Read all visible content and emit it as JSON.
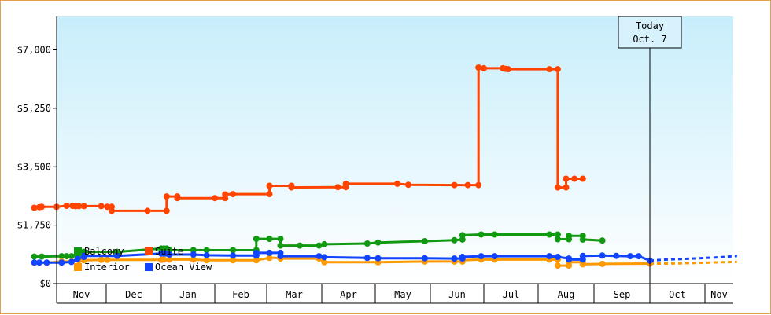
{
  "chart_data": {
    "type": "line",
    "title": "",
    "xlabel": "",
    "ylabel": "",
    "ylim": [
      0,
      8000
    ],
    "grid": false,
    "y_ticks": [
      0,
      1750,
      3500,
      5250,
      7000
    ],
    "y_tick_labels": [
      "$0",
      "$1,750",
      "$3,500",
      "$5,250",
      "$7,000"
    ],
    "months": [
      "Nov",
      "Dec",
      "Jan",
      "Feb",
      "Mar",
      "Apr",
      "May",
      "Jun",
      "Jul",
      "Aug",
      "Sep",
      "Oct",
      "Nov"
    ],
    "legend": {
      "placement": "bottom-left"
    },
    "today_marker": {
      "line1": "Today",
      "line2": "Oct. 7",
      "x": 11.0
    },
    "series": [
      {
        "name": "Balcony",
        "color": "#119911",
        "points": [
          [
            -0.45,
            810
          ],
          [
            -0.3,
            810
          ],
          [
            0.1,
            820
          ],
          [
            0.2,
            820
          ],
          [
            0.3,
            820
          ],
          [
            0.42,
            840
          ],
          [
            0.55,
            870
          ],
          [
            0.55,
            950
          ],
          [
            1.2,
            950
          ],
          [
            2.0,
            1050
          ],
          [
            2.05,
            1050
          ],
          [
            2.1,
            1050
          ],
          [
            2.15,
            1000
          ],
          [
            2.6,
            1000
          ],
          [
            2.85,
            1000
          ],
          [
            3.35,
            1000
          ],
          [
            3.8,
            1000
          ],
          [
            3.8,
            1340
          ],
          [
            4.05,
            1340
          ],
          [
            4.25,
            1340
          ],
          [
            4.25,
            1140
          ],
          [
            4.6,
            1140
          ],
          [
            4.95,
            1140
          ],
          [
            5.05,
            1180
          ],
          [
            5.85,
            1200
          ],
          [
            6.05,
            1230
          ],
          [
            6.9,
            1270
          ],
          [
            7.45,
            1300
          ],
          [
            7.6,
            1320
          ],
          [
            7.6,
            1450
          ],
          [
            7.95,
            1470
          ],
          [
            8.2,
            1470
          ],
          [
            9.2,
            1470
          ],
          [
            9.35,
            1470
          ],
          [
            9.35,
            1330
          ],
          [
            9.55,
            1330
          ],
          [
            9.55,
            1430
          ],
          [
            9.8,
            1430
          ],
          [
            9.8,
            1320
          ],
          [
            10.15,
            1290
          ]
        ]
      },
      {
        "name": "Suite",
        "color": "#ff4400",
        "points": [
          [
            -0.45,
            2270
          ],
          [
            -0.35,
            2290
          ],
          [
            -0.3,
            2300
          ],
          [
            0.0,
            2300
          ],
          [
            0.2,
            2330
          ],
          [
            0.32,
            2330
          ],
          [
            0.38,
            2320
          ],
          [
            0.45,
            2320
          ],
          [
            0.55,
            2320
          ],
          [
            0.9,
            2320
          ],
          [
            1.02,
            2300
          ],
          [
            1.1,
            2300
          ],
          [
            1.1,
            2180
          ],
          [
            1.75,
            2180
          ],
          [
            2.1,
            2180
          ],
          [
            2.1,
            2610
          ],
          [
            2.3,
            2610
          ],
          [
            2.3,
            2560
          ],
          [
            3.0,
            2560
          ],
          [
            3.2,
            2560
          ],
          [
            3.2,
            2670
          ],
          [
            3.35,
            2680
          ],
          [
            4.05,
            2680
          ],
          [
            4.05,
            2930
          ],
          [
            4.45,
            2930
          ],
          [
            4.45,
            2880
          ],
          [
            5.3,
            2890
          ],
          [
            5.45,
            2890
          ],
          [
            5.45,
            2990
          ],
          [
            6.4,
            2990
          ],
          [
            6.6,
            2960
          ],
          [
            7.45,
            2950
          ],
          [
            7.7,
            2950
          ],
          [
            7.9,
            2950
          ],
          [
            7.9,
            6470
          ],
          [
            8.0,
            6450
          ],
          [
            8.35,
            6450
          ],
          [
            8.4,
            6430
          ],
          [
            8.45,
            6420
          ],
          [
            9.2,
            6420
          ],
          [
            9.35,
            6420
          ],
          [
            9.35,
            2880
          ],
          [
            9.5,
            2880
          ],
          [
            9.5,
            3140
          ],
          [
            9.65,
            3140
          ],
          [
            9.8,
            3140
          ]
        ]
      },
      {
        "name": "Interior",
        "color": "#ff9900",
        "points": [
          [
            -0.45,
            620
          ],
          [
            -0.2,
            620
          ],
          [
            0.1,
            660
          ],
          [
            0.3,
            660
          ],
          [
            0.45,
            700
          ],
          [
            0.55,
            700
          ],
          [
            0.9,
            710
          ],
          [
            1.02,
            710
          ],
          [
            2.0,
            710
          ],
          [
            2.05,
            720
          ],
          [
            2.15,
            720
          ],
          [
            2.6,
            720
          ],
          [
            2.85,
            700
          ],
          [
            3.35,
            700
          ],
          [
            3.8,
            700
          ],
          [
            4.05,
            770
          ],
          [
            4.25,
            770
          ],
          [
            4.25,
            750
          ],
          [
            4.95,
            750
          ],
          [
            5.05,
            640
          ],
          [
            6.05,
            640
          ],
          [
            6.9,
            660
          ],
          [
            7.45,
            660
          ],
          [
            7.6,
            660
          ],
          [
            7.6,
            700
          ],
          [
            7.95,
            720
          ],
          [
            8.2,
            720
          ],
          [
            9.2,
            720
          ],
          [
            9.35,
            720
          ],
          [
            9.35,
            540
          ],
          [
            9.55,
            540
          ],
          [
            9.55,
            640
          ],
          [
            9.8,
            640
          ],
          [
            9.8,
            580
          ],
          [
            10.15,
            590
          ],
          [
            11.0,
            600
          ],
          [
            11.3,
            600
          ],
          [
            11.6,
            610
          ],
          [
            11.9,
            620
          ],
          [
            12.3,
            640
          ],
          [
            12.6,
            650
          ]
        ]
      },
      {
        "name": "Ocean View",
        "color": "#1144ff",
        "points": [
          [
            -0.45,
            630
          ],
          [
            -0.35,
            630
          ],
          [
            -0.2,
            630
          ],
          [
            0.1,
            630
          ],
          [
            0.3,
            650
          ],
          [
            0.42,
            740
          ],
          [
            0.55,
            800
          ],
          [
            0.55,
            830
          ],
          [
            1.2,
            830
          ],
          [
            2.0,
            900
          ],
          [
            2.05,
            900
          ],
          [
            2.1,
            900
          ],
          [
            2.15,
            870
          ],
          [
            2.6,
            870
          ],
          [
            2.85,
            850
          ],
          [
            3.35,
            840
          ],
          [
            3.8,
            840
          ],
          [
            3.8,
            920
          ],
          [
            4.05,
            920
          ],
          [
            4.25,
            920
          ],
          [
            4.25,
            820
          ],
          [
            4.95,
            820
          ],
          [
            5.05,
            790
          ],
          [
            5.85,
            770
          ],
          [
            6.05,
            760
          ],
          [
            6.9,
            760
          ],
          [
            7.45,
            750
          ],
          [
            7.6,
            750
          ],
          [
            7.6,
            800
          ],
          [
            7.95,
            820
          ],
          [
            8.2,
            820
          ],
          [
            9.2,
            820
          ],
          [
            9.35,
            800
          ],
          [
            9.55,
            750
          ],
          [
            9.55,
            720
          ],
          [
            9.8,
            720
          ],
          [
            9.8,
            830
          ],
          [
            10.15,
            840
          ],
          [
            10.4,
            830
          ],
          [
            10.65,
            820
          ],
          [
            10.8,
            820
          ],
          [
            11.0,
            690
          ],
          [
            11.3,
            720
          ],
          [
            11.6,
            740
          ],
          [
            11.9,
            760
          ],
          [
            12.3,
            790
          ],
          [
            12.6,
            830
          ]
        ]
      }
    ]
  }
}
